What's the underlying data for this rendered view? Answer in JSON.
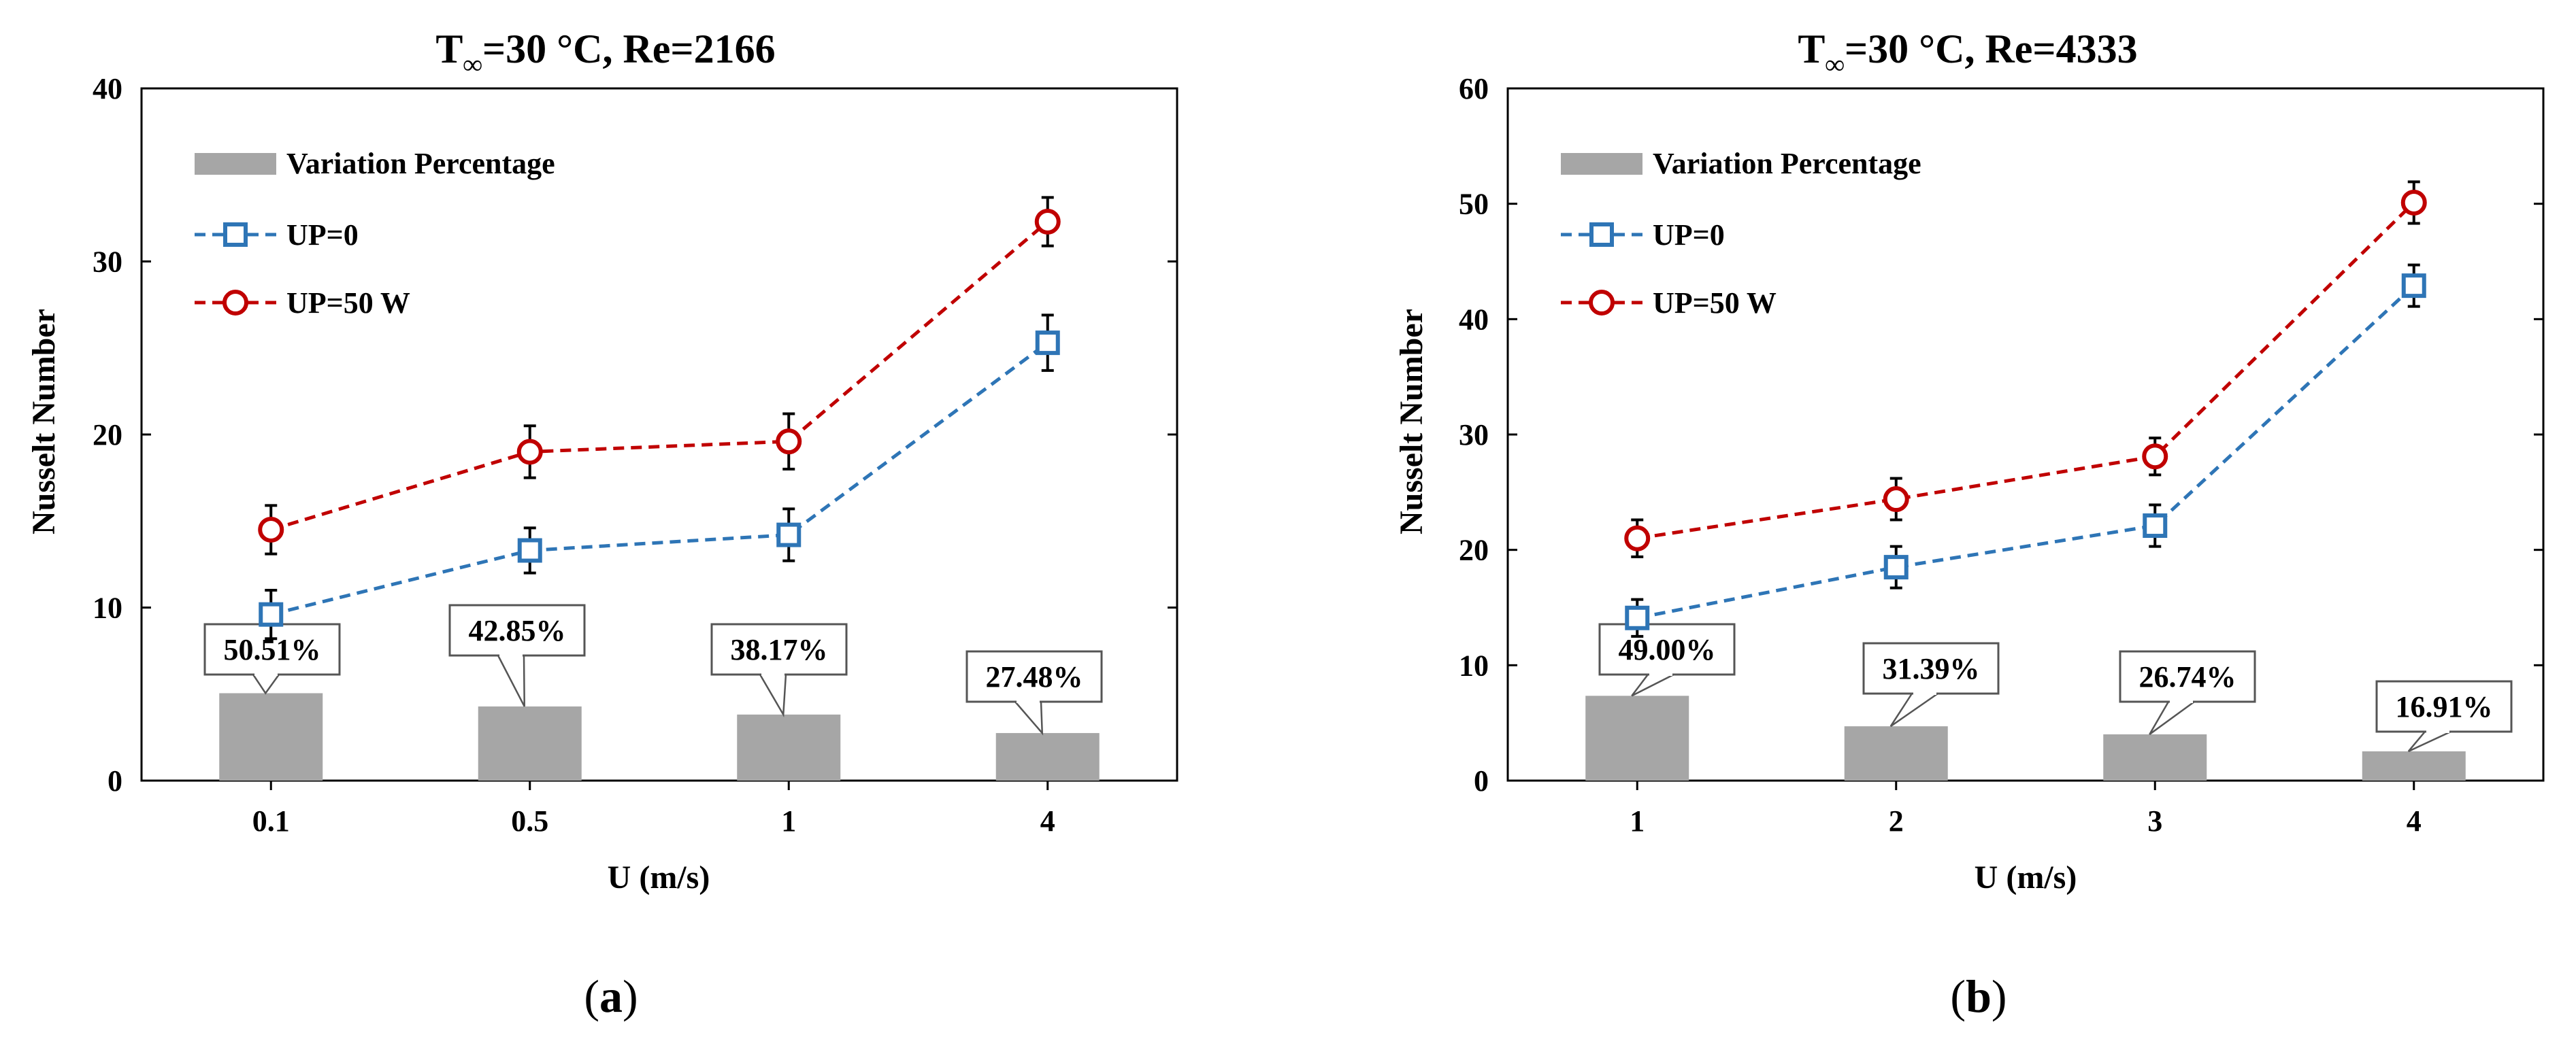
{
  "colors": {
    "bar": "#a6a6a6",
    "up0": "#2e75b6",
    "up50": "#c00000",
    "axis": "#000000"
  },
  "chart_data": [
    {
      "type": "bar+line",
      "title_parts": [
        "T",
        "∞",
        "=30 °C, Re=2166"
      ],
      "xlabel": "U (m/s)",
      "ylabel": "Nusselt Number",
      "categories": [
        "0.1",
        "0.5",
        "1",
        "4"
      ],
      "ylim": [
        0,
        40
      ],
      "yticks": [
        "0",
        "10",
        "20",
        "30",
        "40"
      ],
      "series": [
        {
          "name": "Variation Percentage",
          "kind": "bar",
          "values": [
            5.051,
            4.285,
            3.817,
            2.748
          ]
        },
        {
          "name": "UP=0",
          "kind": "line",
          "marker": "square",
          "values": [
            9.6,
            13.3,
            14.2,
            25.3
          ],
          "error": [
            1.4,
            1.3,
            1.5,
            1.6
          ]
        },
        {
          "name": "UP=50 W",
          "kind": "line",
          "marker": "circle",
          "values": [
            14.5,
            19.0,
            19.6,
            32.3
          ],
          "error": [
            1.4,
            1.5,
            1.6,
            1.4
          ]
        }
      ],
      "annotations": [
        "50.51%",
        "42.85%",
        "38.17%",
        "27.48%"
      ],
      "legend_position": "top-left",
      "caption": [
        "(",
        "a",
        ")"
      ]
    },
    {
      "type": "bar+line",
      "title_parts": [
        "T",
        "∞",
        "=30 °C, Re=4333"
      ],
      "xlabel": "U (m/s)",
      "ylabel": "Nusselt Number",
      "categories": [
        "1",
        "2",
        "3",
        "4"
      ],
      "ylim": [
        0,
        60
      ],
      "yticks": [
        "0",
        "10",
        "20",
        "30",
        "40",
        "50",
        "60"
      ],
      "series": [
        {
          "name": "Variation Percentage",
          "kind": "bar",
          "values": [
            7.35,
            4.709,
            4.011,
            2.537
          ]
        },
        {
          "name": "UP=0",
          "kind": "line",
          "marker": "square",
          "values": [
            14.1,
            18.5,
            22.1,
            42.9
          ],
          "error": [
            1.6,
            1.8,
            1.8,
            1.8
          ]
        },
        {
          "name": "UP=50 W",
          "kind": "line",
          "marker": "circle",
          "values": [
            21.0,
            24.4,
            28.1,
            50.1
          ],
          "error": [
            1.6,
            1.8,
            1.6,
            1.8
          ]
        }
      ],
      "annotations": [
        "49.00%",
        "31.39%",
        "26.74%",
        "16.91%"
      ],
      "legend_position": "top-left",
      "caption": [
        "(",
        "b",
        ")"
      ]
    }
  ]
}
